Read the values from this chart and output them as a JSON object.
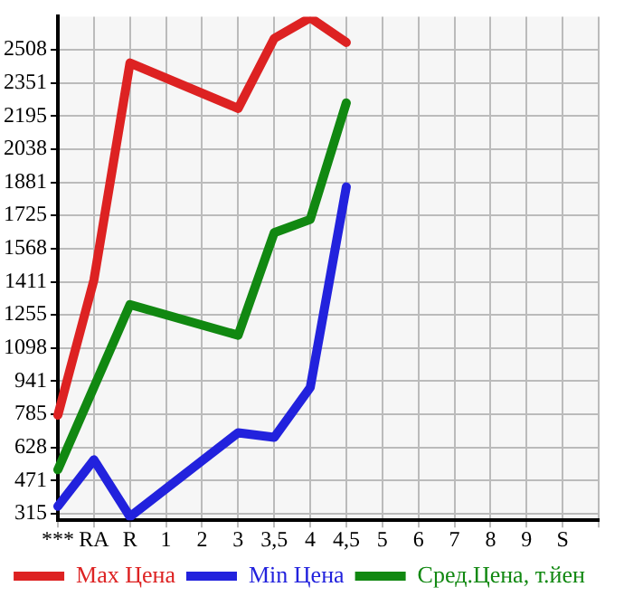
{
  "chart_data": {
    "type": "line",
    "categories": [
      "***",
      "RA",
      "R",
      "1",
      "2",
      "3",
      "3,5",
      "4",
      "4,5",
      "5",
      "6",
      "7",
      "8",
      "9",
      "S",
      null
    ],
    "series": [
      {
        "name": "Max Цена",
        "color": "#dd2222",
        "values": [
          780,
          1420,
          2446,
          null,
          null,
          2231,
          2562,
          2660,
          2543,
          null,
          null,
          null,
          null,
          null,
          null,
          null
        ]
      },
      {
        "name": "Min Цена",
        "color": "#2222dd",
        "values": [
          349,
          569,
          300,
          null,
          null,
          697,
          675,
          911,
          1860,
          null,
          null,
          null,
          null,
          null,
          null,
          null
        ]
      },
      {
        "name": "Сред.Цена, т.йен",
        "color": "#118811",
        "values": [
          522,
          null,
          1303,
          null,
          null,
          1158,
          1643,
          1706,
          2257,
          null,
          null,
          null,
          null,
          null,
          null,
          null
        ]
      }
    ],
    "ylim": [
      283,
      2665
    ],
    "yticks": [
      315,
      471,
      628,
      785,
      941,
      1098,
      1255,
      1411,
      1568,
      1725,
      1881,
      2038,
      2195,
      2351,
      2508
    ],
    "grid": true,
    "legend": "bottom",
    "marker": "none",
    "line_style": "solid"
  }
}
